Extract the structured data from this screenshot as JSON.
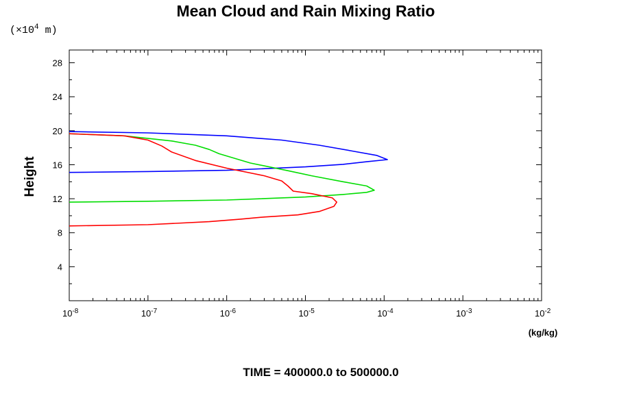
{
  "chart_data": {
    "type": "line",
    "title": "Mean Cloud and Rain Mixing Ratio",
    "y_scale_note_prefix": "(×10",
    "y_scale_note_exp": "4",
    "y_scale_note_suffix": " m)",
    "ylabel": "Height",
    "xlabel": "(kg/kg)",
    "footer": "TIME = 400000.0 to 500000.0",
    "x_scale": "log",
    "xlim": [
      1e-08,
      0.01
    ],
    "ylim": [
      0,
      29.5
    ],
    "x_tick_labels": [
      {
        "base": "10",
        "exp": "-8",
        "value": 1e-08
      },
      {
        "base": "10",
        "exp": "-7",
        "value": 1e-07
      },
      {
        "base": "10",
        "exp": "-6",
        "value": 1e-06
      },
      {
        "base": "10",
        "exp": "-5",
        "value": 1e-05
      },
      {
        "base": "10",
        "exp": "-4",
        "value": 0.0001
      },
      {
        "base": "10",
        "exp": "-3",
        "value": 0.001
      },
      {
        "base": "10",
        "exp": "-2",
        "value": 0.01
      }
    ],
    "y_ticks": [
      4,
      8,
      12,
      16,
      20,
      24,
      28
    ],
    "y_tick_labels": [
      "4",
      "8",
      "12",
      "16",
      "20",
      "24",
      "28"
    ],
    "y_minor_step": 2,
    "grid": false,
    "series": [
      {
        "color": "#0000ff",
        "points": [
          [
            1e-08,
            15.1
          ],
          [
            1e-07,
            15.2
          ],
          [
            1e-06,
            15.35
          ],
          [
            1e-05,
            15.75
          ],
          [
            3e-05,
            16.05
          ],
          [
            6e-05,
            16.35
          ],
          [
            0.00011,
            16.6
          ],
          [
            8e-05,
            17.1
          ],
          [
            4e-05,
            17.6
          ],
          [
            1.5e-05,
            18.3
          ],
          [
            5e-06,
            18.9
          ],
          [
            1e-06,
            19.4
          ],
          [
            1e-07,
            19.75
          ],
          [
            1e-08,
            19.9
          ]
        ]
      },
      {
        "color": "#00dd00",
        "points": [
          [
            1e-08,
            11.6
          ],
          [
            1e-07,
            11.7
          ],
          [
            1e-06,
            11.85
          ],
          [
            1e-05,
            12.2
          ],
          [
            3e-05,
            12.5
          ],
          [
            6e-05,
            12.75
          ],
          [
            7.5e-05,
            13.0
          ],
          [
            6e-05,
            13.5
          ],
          [
            3e-05,
            14.0
          ],
          [
            1.2e-05,
            14.7
          ],
          [
            6e-06,
            15.3
          ],
          [
            2e-06,
            16.2
          ],
          [
            8e-07,
            17.3
          ],
          [
            6e-07,
            17.8
          ],
          [
            4e-07,
            18.3
          ],
          [
            2e-07,
            18.8
          ],
          [
            5e-08,
            19.4
          ],
          [
            1e-08,
            19.65
          ]
        ]
      },
      {
        "color": "#ff0000",
        "points": [
          [
            1e-08,
            8.8
          ],
          [
            1e-07,
            8.95
          ],
          [
            6e-07,
            9.3
          ],
          [
            1.5e-06,
            9.6
          ],
          [
            3e-06,
            9.85
          ],
          [
            8e-06,
            10.1
          ],
          [
            1.5e-05,
            10.5
          ],
          [
            2.3e-05,
            11.1
          ],
          [
            2.5e-05,
            11.6
          ],
          [
            2.2e-05,
            12.1
          ],
          [
            1.2e-05,
            12.6
          ],
          [
            7e-06,
            12.9
          ],
          [
            6e-06,
            13.5
          ],
          [
            5e-06,
            14.1
          ],
          [
            3e-06,
            14.7
          ],
          [
            1e-06,
            15.6
          ],
          [
            4e-07,
            16.5
          ],
          [
            2e-07,
            17.5
          ],
          [
            1.5e-07,
            18.2
          ],
          [
            1e-07,
            18.9
          ],
          [
            5e-08,
            19.4
          ],
          [
            1e-08,
            19.65
          ]
        ]
      }
    ]
  }
}
